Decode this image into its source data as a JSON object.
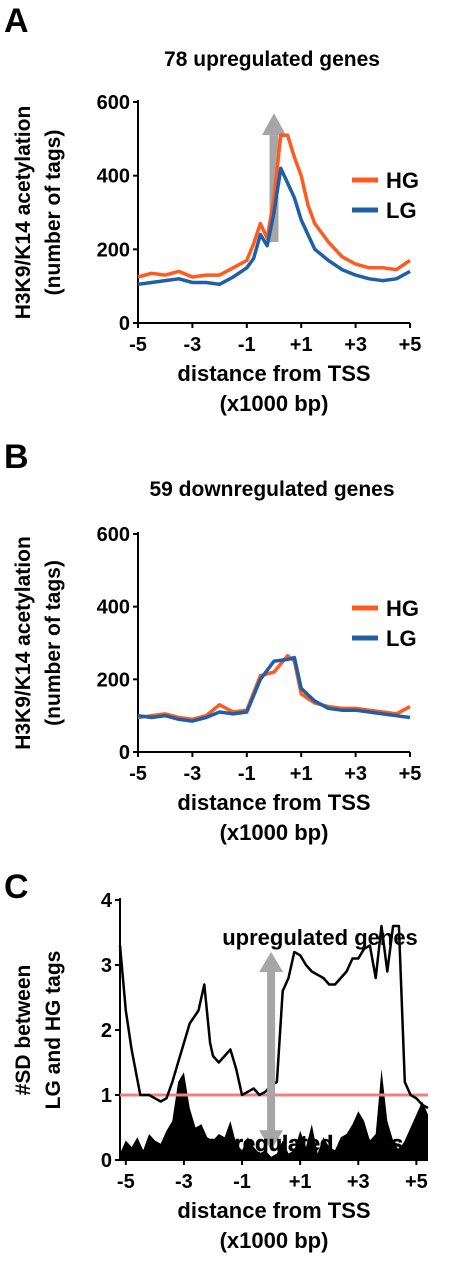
{
  "colors": {
    "HG": "#ff5a1f",
    "LG": "#1f5fa8",
    "threshold": "#f08080",
    "arrow": "#a6a6a6",
    "sd": "#000000"
  },
  "chart_data": [
    {
      "panel": "A",
      "type": "line",
      "title": "78 upregulated genes",
      "xlabel": [
        "distance from TSS",
        "(x1000 bp)"
      ],
      "ylabel": [
        "H3K9/K14 acetylation",
        "(number of tags)"
      ],
      "xlim": [
        -5,
        5
      ],
      "ylim": [
        0,
        600
      ],
      "xticks": [
        -5,
        -3,
        -1,
        1,
        3,
        5
      ],
      "xtick_labels": [
        "-5",
        "-3",
        "-1",
        "+1",
        "+3",
        "+5"
      ],
      "yticks": [
        0,
        200,
        400,
        600
      ],
      "ytick_labels": [
        "0",
        "200",
        "400",
        "600"
      ],
      "legend": [
        "HG",
        "LG"
      ],
      "legend_position": "right",
      "annotation": "gray arrow pointing up at TSS",
      "series": [
        {
          "name": "HG",
          "x": [
            -5,
            -4.5,
            -4,
            -3.5,
            -3,
            -2.5,
            -2,
            -1.5,
            -1,
            -0.75,
            -0.5,
            -0.25,
            0,
            0.25,
            0.5,
            0.75,
            1,
            1.25,
            1.5,
            2,
            2.5,
            3,
            3.5,
            4,
            4.5,
            5
          ],
          "values": [
            125,
            135,
            130,
            140,
            125,
            130,
            130,
            150,
            170,
            215,
            270,
            230,
            340,
            510,
            510,
            450,
            400,
            320,
            270,
            220,
            180,
            160,
            150,
            150,
            145,
            170
          ]
        },
        {
          "name": "LG",
          "x": [
            -5,
            -4.5,
            -4,
            -3.5,
            -3,
            -2.5,
            -2,
            -1.5,
            -1,
            -0.75,
            -0.5,
            -0.25,
            0,
            0.25,
            0.5,
            0.75,
            1,
            1.25,
            1.5,
            2,
            2.5,
            3,
            3.5,
            4,
            4.5,
            5
          ],
          "values": [
            105,
            110,
            115,
            120,
            110,
            110,
            105,
            125,
            150,
            175,
            240,
            210,
            300,
            420,
            380,
            340,
            280,
            240,
            200,
            170,
            145,
            130,
            120,
            115,
            120,
            140
          ]
        }
      ]
    },
    {
      "panel": "B",
      "type": "line",
      "title": "59 downregulated genes",
      "xlabel": [
        "distance from TSS",
        "(x1000 bp)"
      ],
      "ylabel": [
        "H3K9/K14 acetylation",
        "(number of tags)"
      ],
      "xlim": [
        -5,
        5
      ],
      "ylim": [
        0,
        600
      ],
      "xticks": [
        -5,
        -3,
        -1,
        1,
        3,
        5
      ],
      "xtick_labels": [
        "-5",
        "-3",
        "-1",
        "+1",
        "+3",
        "+5"
      ],
      "yticks": [
        0,
        200,
        400,
        600
      ],
      "ytick_labels": [
        "0",
        "200",
        "400",
        "600"
      ],
      "legend": [
        "HG",
        "LG"
      ],
      "legend_position": "right",
      "series": [
        {
          "name": "HG",
          "x": [
            -5,
            -4.5,
            -4,
            -3.5,
            -3,
            -2.5,
            -2,
            -1.5,
            -1,
            -0.5,
            0,
            0.5,
            0.75,
            1,
            1.5,
            2,
            2.5,
            3,
            3.5,
            4,
            4.5,
            5
          ],
          "values": [
            95,
            100,
            105,
            95,
            90,
            100,
            130,
            110,
            115,
            210,
            220,
            265,
            250,
            160,
            135,
            125,
            120,
            120,
            115,
            110,
            105,
            125
          ]
        },
        {
          "name": "LG",
          "x": [
            -5,
            -4.5,
            -4,
            -3.5,
            -3,
            -2.5,
            -2,
            -1.5,
            -1,
            -0.5,
            0,
            0.5,
            0.75,
            1,
            1.5,
            2,
            2.5,
            3,
            3.5,
            4,
            4.5,
            5
          ],
          "values": [
            100,
            95,
            100,
            90,
            85,
            95,
            110,
            105,
            110,
            200,
            250,
            255,
            260,
            175,
            140,
            120,
            115,
            115,
            110,
            105,
            100,
            95
          ]
        }
      ]
    },
    {
      "panel": "C",
      "type": "area",
      "title": "",
      "xlabel": [
        "distance from TSS",
        "(x1000 bp)"
      ],
      "ylabel": [
        "#SD between",
        "LG and HG tags"
      ],
      "xlim": [
        -5.2,
        5.4
      ],
      "ylim": [
        0,
        4
      ],
      "xticks": [
        -5,
        -3,
        -1,
        1,
        3,
        5
      ],
      "xtick_labels": [
        "-5",
        "-3",
        "-1",
        "+1",
        "+3",
        "+5"
      ],
      "yticks": [
        0,
        1,
        2,
        3,
        4
      ],
      "ytick_labels": [
        "0",
        "1",
        "2",
        "3",
        "4"
      ],
      "threshold": 1,
      "annotations": [
        "upregulated genes",
        "downregulated genes"
      ],
      "annotation_arrow": "gray double-headed vertical arrow at TSS",
      "series": [
        {
          "name": "upregulated genes",
          "x": [
            -5.2,
            -5,
            -4.8,
            -4.5,
            -4.2,
            -4,
            -3.8,
            -3.6,
            -3.4,
            -3.2,
            -3,
            -2.8,
            -2.5,
            -2.3,
            -2.1,
            -2,
            -1.8,
            -1.6,
            -1.4,
            -1.2,
            -1,
            -0.8,
            -0.6,
            -0.4,
            -0.2,
            0,
            0.2,
            0.4,
            0.6,
            0.8,
            1,
            1.2,
            1.4,
            1.6,
            1.8,
            2,
            2.2,
            2.4,
            2.6,
            2.8,
            3,
            3.2,
            3.4,
            3.6,
            3.8,
            4,
            4.2,
            4.4,
            4.6,
            4.8,
            5,
            5.2,
            5.4
          ],
          "values": [
            3.3,
            2.3,
            1.7,
            1.0,
            1.0,
            0.95,
            0.9,
            0.95,
            1.2,
            1.5,
            1.8,
            2.1,
            2.3,
            2.7,
            1.8,
            1.6,
            1.5,
            1.6,
            1.7,
            1.4,
            1.0,
            1.05,
            1.1,
            1.0,
            1.05,
            1.15,
            1.2,
            2.6,
            2.8,
            3.2,
            3.15,
            3.0,
            2.9,
            2.85,
            2.8,
            2.7,
            2.7,
            2.8,
            2.9,
            3.1,
            3.1,
            3.25,
            3.3,
            2.8,
            3.6,
            2.9,
            3.6,
            3.6,
            1.2,
            1.0,
            0.95,
            0.85,
            0.8
          ]
        },
        {
          "name": "downregulated genes",
          "x": [
            -5.2,
            -5,
            -4.8,
            -4.6,
            -4.4,
            -4.2,
            -4,
            -3.8,
            -3.6,
            -3.4,
            -3.2,
            -3,
            -2.8,
            -2.6,
            -2.4,
            -2.2,
            -2,
            -1.8,
            -1.6,
            -1.4,
            -1.2,
            -1,
            -0.8,
            -0.6,
            -0.4,
            -0.2,
            0,
            0.2,
            0.4,
            0.6,
            0.8,
            1,
            1.2,
            1.4,
            1.6,
            1.8,
            2,
            2.2,
            2.4,
            2.6,
            2.8,
            3,
            3.2,
            3.4,
            3.6,
            3.8,
            4,
            4.2,
            4.4,
            4.6,
            4.8,
            5,
            5.2,
            5.4
          ],
          "values": [
            0.1,
            0.3,
            0.2,
            0.35,
            0.15,
            0.4,
            0.3,
            0.25,
            0.45,
            0.6,
            1.2,
            1.35,
            0.8,
            0.5,
            0.55,
            0.35,
            0.3,
            0.4,
            0.35,
            0.6,
            0.25,
            0.15,
            0.35,
            0.2,
            0.1,
            0.15,
            0.05,
            0.1,
            0.3,
            0.1,
            0.15,
            0.45,
            0.2,
            0.55,
            0.1,
            0.35,
            0.2,
            0.15,
            0.35,
            0.4,
            0.55,
            0.75,
            0.6,
            0.3,
            0.4,
            1.4,
            0.6,
            0.3,
            0.15,
            0.3,
            0.5,
            0.7,
            0.9,
            0.7
          ]
        }
      ]
    }
  ]
}
